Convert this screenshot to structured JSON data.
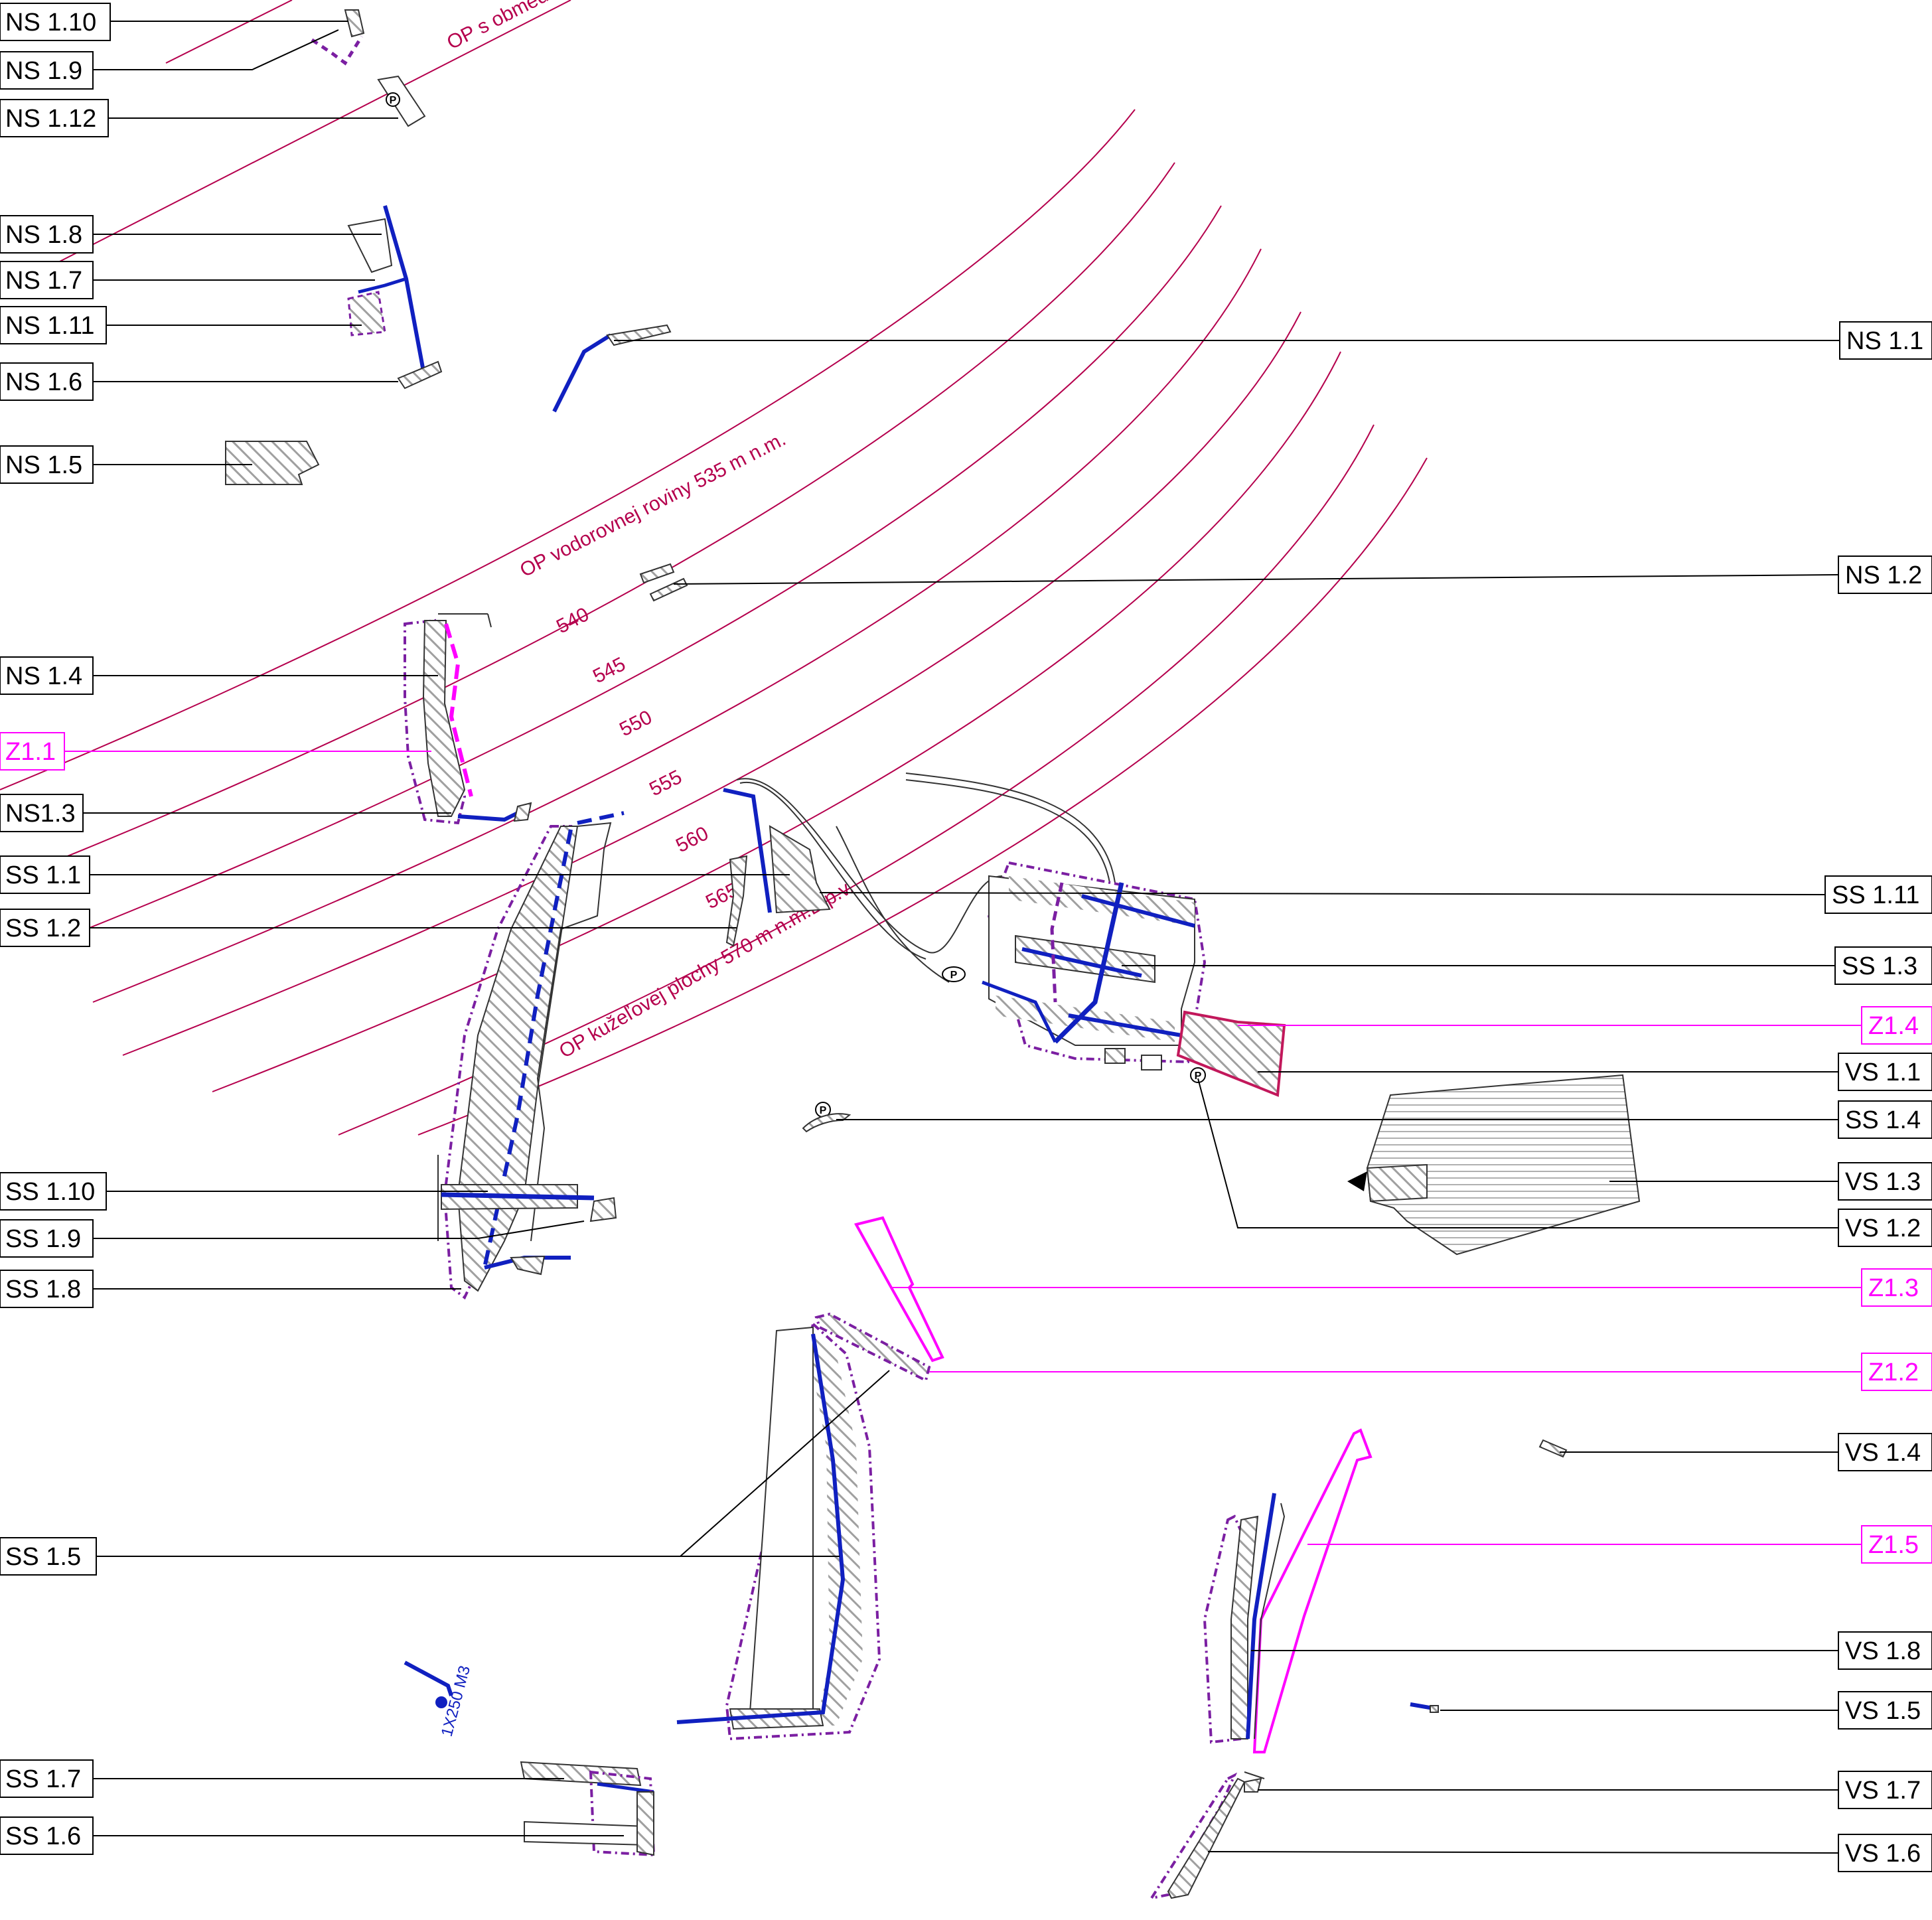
{
  "colors": {
    "arc": "#b5004d",
    "label_box": "#000000",
    "zone_label": "#ff00ff",
    "road": "#1020c0",
    "boundary": "#7b1fa2",
    "hatch": "#9e9e9e"
  },
  "annotations": {
    "op_obmedz": "OP s obmed",
    "op_vodorovnej": "OP vodorovnej roviny 535 m n.m.",
    "contour_540": "540",
    "contour_545": "545",
    "contour_550": "550",
    "contour_555": "555",
    "contour_560": "560",
    "contour_565": "565",
    "op_kuzelovej": "OP kužeľovej plochy 570 m n.m.B.p.v.",
    "tank": "1X250 M3"
  },
  "labels_left": [
    {
      "id": "ns110",
      "text": "NS 1.10"
    },
    {
      "id": "ns19",
      "text": "NS 1.9"
    },
    {
      "id": "ns112",
      "text": "NS 1.12"
    },
    {
      "id": "ns18",
      "text": "NS 1.8"
    },
    {
      "id": "ns17",
      "text": "NS 1.7"
    },
    {
      "id": "ns111",
      "text": "NS 1.11"
    },
    {
      "id": "ns16",
      "text": "NS 1.6"
    },
    {
      "id": "ns15",
      "text": "NS 1.5"
    },
    {
      "id": "ns14",
      "text": "NS 1.4"
    },
    {
      "id": "z11",
      "text": "Z1.1"
    },
    {
      "id": "ns13",
      "text": "NS1.3"
    },
    {
      "id": "ss11",
      "text": "SS 1.1"
    },
    {
      "id": "ss12",
      "text": "SS 1.2"
    },
    {
      "id": "ss110",
      "text": "SS 1.10"
    },
    {
      "id": "ss19",
      "text": "SS 1.9"
    },
    {
      "id": "ss18",
      "text": "SS 1.8"
    },
    {
      "id": "ss15",
      "text": "SS 1.5"
    },
    {
      "id": "ss17",
      "text": "SS 1.7"
    },
    {
      "id": "ss16",
      "text": "SS 1.6"
    }
  ],
  "labels_right": [
    {
      "id": "ns11",
      "text": "NS 1.1"
    },
    {
      "id": "ns12",
      "text": "NS 1.2"
    },
    {
      "id": "ss111",
      "text": "SS 1.11"
    },
    {
      "id": "ss13",
      "text": "SS 1.3"
    },
    {
      "id": "z14",
      "text": "Z1.4"
    },
    {
      "id": "vs11",
      "text": "VS 1.1"
    },
    {
      "id": "ss14",
      "text": "SS 1.4"
    },
    {
      "id": "vs13",
      "text": "VS 1.3"
    },
    {
      "id": "vs12",
      "text": "VS 1.2"
    },
    {
      "id": "z13",
      "text": "Z1.3"
    },
    {
      "id": "z12",
      "text": "Z1.2"
    },
    {
      "id": "vs14",
      "text": "VS 1.4"
    },
    {
      "id": "z15",
      "text": "Z1.5"
    },
    {
      "id": "vs18",
      "text": "VS 1.8"
    },
    {
      "id": "vs15",
      "text": "VS 1.5"
    },
    {
      "id": "vs17",
      "text": "VS 1.7"
    },
    {
      "id": "vs16",
      "text": "VS 1.6"
    }
  ],
  "parking_symbol": "P"
}
